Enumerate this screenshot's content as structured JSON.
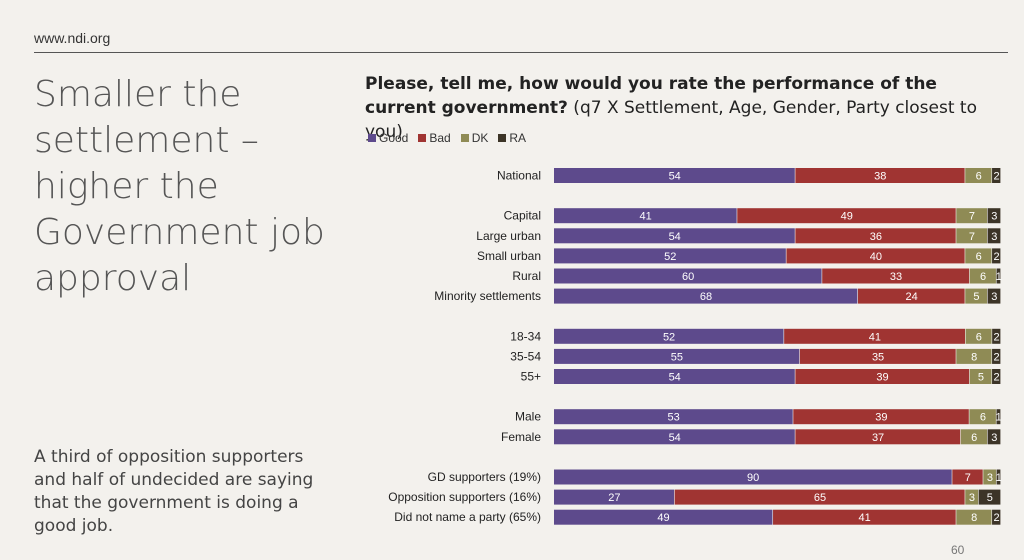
{
  "site": "www.ndi.org",
  "headline": "Smaller the settlement – higher the Government job approval",
  "note": "A third of opposition supporters and half of undecided are saying that the government is doing a good job.",
  "chart_title_bold": "Please, tell me, how would you rate the performance of the current government?",
  "chart_title_rest": " (q7 X Settlement, Age, Gender, Party closest to you)",
  "page_number": "60",
  "colors": {
    "good": "#5d4a8c",
    "bad": "#a03432",
    "dk": "#8f8b55",
    "ra": "#3c3427"
  },
  "chart_data": {
    "type": "bar",
    "orientation": "horizontal-stacked-100",
    "legend": [
      "Good",
      "Bad",
      "DK",
      "RA"
    ],
    "categories": [
      "National",
      "Capital",
      "Large urban",
      "Small urban",
      "Rural",
      "Minority settlements",
      "18-34",
      "35-54",
      "55+",
      "Male",
      "Female",
      "GD supporters (19%)",
      "Opposition supporters (16%)",
      "Did not name a party (65%)"
    ],
    "groups": [
      0,
      1,
      1,
      1,
      1,
      1,
      2,
      2,
      2,
      3,
      3,
      4,
      4,
      4
    ],
    "series": [
      {
        "name": "Good",
        "values": [
          54,
          41,
          54,
          52,
          60,
          68,
          52,
          55,
          54,
          53,
          54,
          90,
          27,
          49
        ]
      },
      {
        "name": "Bad",
        "values": [
          38,
          49,
          36,
          40,
          33,
          24,
          41,
          35,
          39,
          39,
          37,
          7,
          65,
          41
        ]
      },
      {
        "name": "DK",
        "values": [
          6,
          7,
          7,
          6,
          6,
          5,
          6,
          8,
          5,
          6,
          6,
          3,
          3,
          8
        ]
      },
      {
        "name": "RA",
        "values": [
          2,
          3,
          3,
          2,
          1,
          3,
          2,
          2,
          2,
          1,
          3,
          1,
          5,
          2
        ]
      }
    ]
  }
}
